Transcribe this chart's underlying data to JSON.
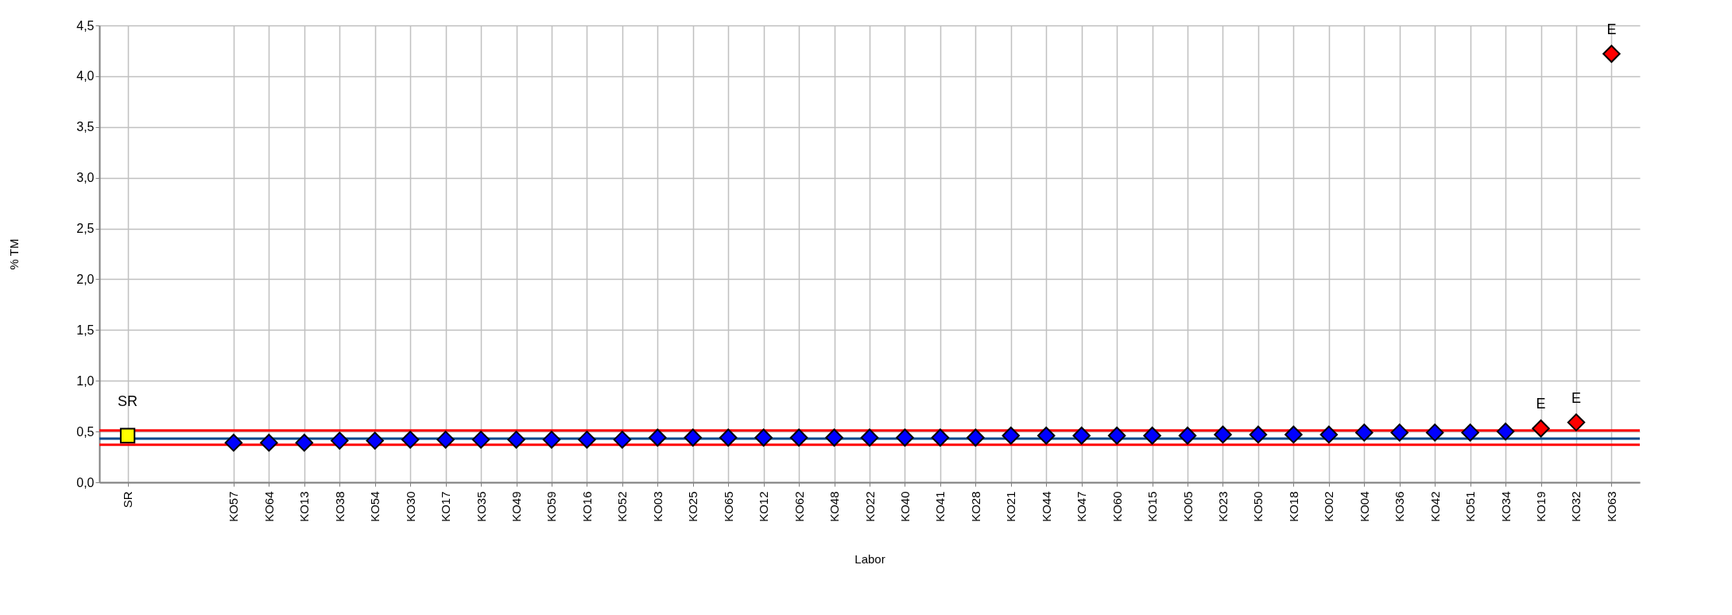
{
  "chart_data": {
    "type": "scatter",
    "xlabel": "Labor",
    "ylabel": "% TM",
    "categories": [
      "SR",
      null,
      null,
      "KO57",
      "KO64",
      "KO13",
      "KO38",
      "KO54",
      "KO30",
      "KO17",
      "KO35",
      "KO49",
      "KO59",
      "KO16",
      "KO52",
      "KO03",
      "KO25",
      "KO65",
      "KO12",
      "KO62",
      "KO48",
      "KO22",
      "KO40",
      "KO41",
      "KO28",
      "KO21",
      "KO44",
      "KO47",
      "KO60",
      "KO15",
      "KO05",
      "KO23",
      "KO50",
      "KO18",
      "KO02",
      "KO04",
      "KO36",
      "KO42",
      "KO51",
      "KO34",
      "KO19",
      "KO32",
      "KO63"
    ],
    "series": [
      {
        "name": "SR",
        "color": "#ffff00",
        "marker": "square",
        "values": [
          0.46,
          null,
          null,
          null,
          null,
          null,
          null,
          null,
          null,
          null,
          null,
          null,
          null,
          null,
          null,
          null,
          null,
          null,
          null,
          null,
          null,
          null,
          null,
          null,
          null,
          null,
          null,
          null,
          null,
          null,
          null,
          null,
          null,
          null,
          null,
          null,
          null,
          null,
          null,
          null,
          null,
          null,
          null
        ]
      },
      {
        "color": "#0000ff",
        "marker": "diamond",
        "values": [
          null,
          null,
          null,
          0.39,
          0.39,
          0.39,
          0.41,
          0.41,
          0.42,
          0.42,
          0.42,
          0.42,
          0.42,
          0.42,
          0.42,
          0.44,
          0.44,
          0.44,
          0.44,
          0.44,
          0.44,
          0.44,
          0.44,
          0.44,
          0.44,
          0.46,
          0.46,
          0.46,
          0.46,
          0.46,
          0.46,
          0.47,
          0.47,
          0.47,
          0.47,
          0.49,
          0.49,
          0.49,
          0.49,
          0.5,
          null,
          null,
          null
        ]
      },
      {
        "color": "#ff0000",
        "marker": "diamond",
        "values": [
          null,
          null,
          null,
          null,
          null,
          null,
          null,
          null,
          null,
          null,
          null,
          null,
          null,
          null,
          null,
          null,
          null,
          null,
          null,
          null,
          null,
          null,
          null,
          null,
          null,
          null,
          null,
          null,
          null,
          null,
          null,
          null,
          null,
          null,
          null,
          null,
          null,
          null,
          null,
          null,
          0.53,
          0.59,
          4.22
        ]
      }
    ],
    "ylim": [
      0,
      4.5
    ],
    "yticks": [
      {
        "value": 0,
        "label": "0,0"
      },
      {
        "value": 0.5,
        "label": "0,5"
      },
      {
        "value": 1,
        "label": "1,0"
      },
      {
        "value": 1.5,
        "label": "1,5"
      },
      {
        "value": 2,
        "label": "2,0"
      },
      {
        "value": 2.5,
        "label": "2,5"
      },
      {
        "value": 3,
        "label": "3,0"
      },
      {
        "value": 3.5,
        "label": "3,5"
      },
      {
        "value": 4,
        "label": "4,0"
      },
      {
        "value": 4.5,
        "label": "4,5"
      }
    ],
    "ref_lines": [
      {
        "axis": "y",
        "value": 0.51,
        "color": "#ff0000"
      },
      {
        "axis": "y",
        "value": 0.43,
        "color": "#0b4a8b"
      },
      {
        "axis": "y",
        "value": 0.37,
        "color": "#ff0000"
      }
    ],
    "annotations": [
      {
        "text": "E",
        "x": "KO19",
        "y": 0.53
      },
      {
        "text": "E",
        "x": "KO32",
        "y": 0.59
      },
      {
        "text": "E",
        "x": "KO63",
        "y": 4.22
      }
    ],
    "grid": true
  }
}
